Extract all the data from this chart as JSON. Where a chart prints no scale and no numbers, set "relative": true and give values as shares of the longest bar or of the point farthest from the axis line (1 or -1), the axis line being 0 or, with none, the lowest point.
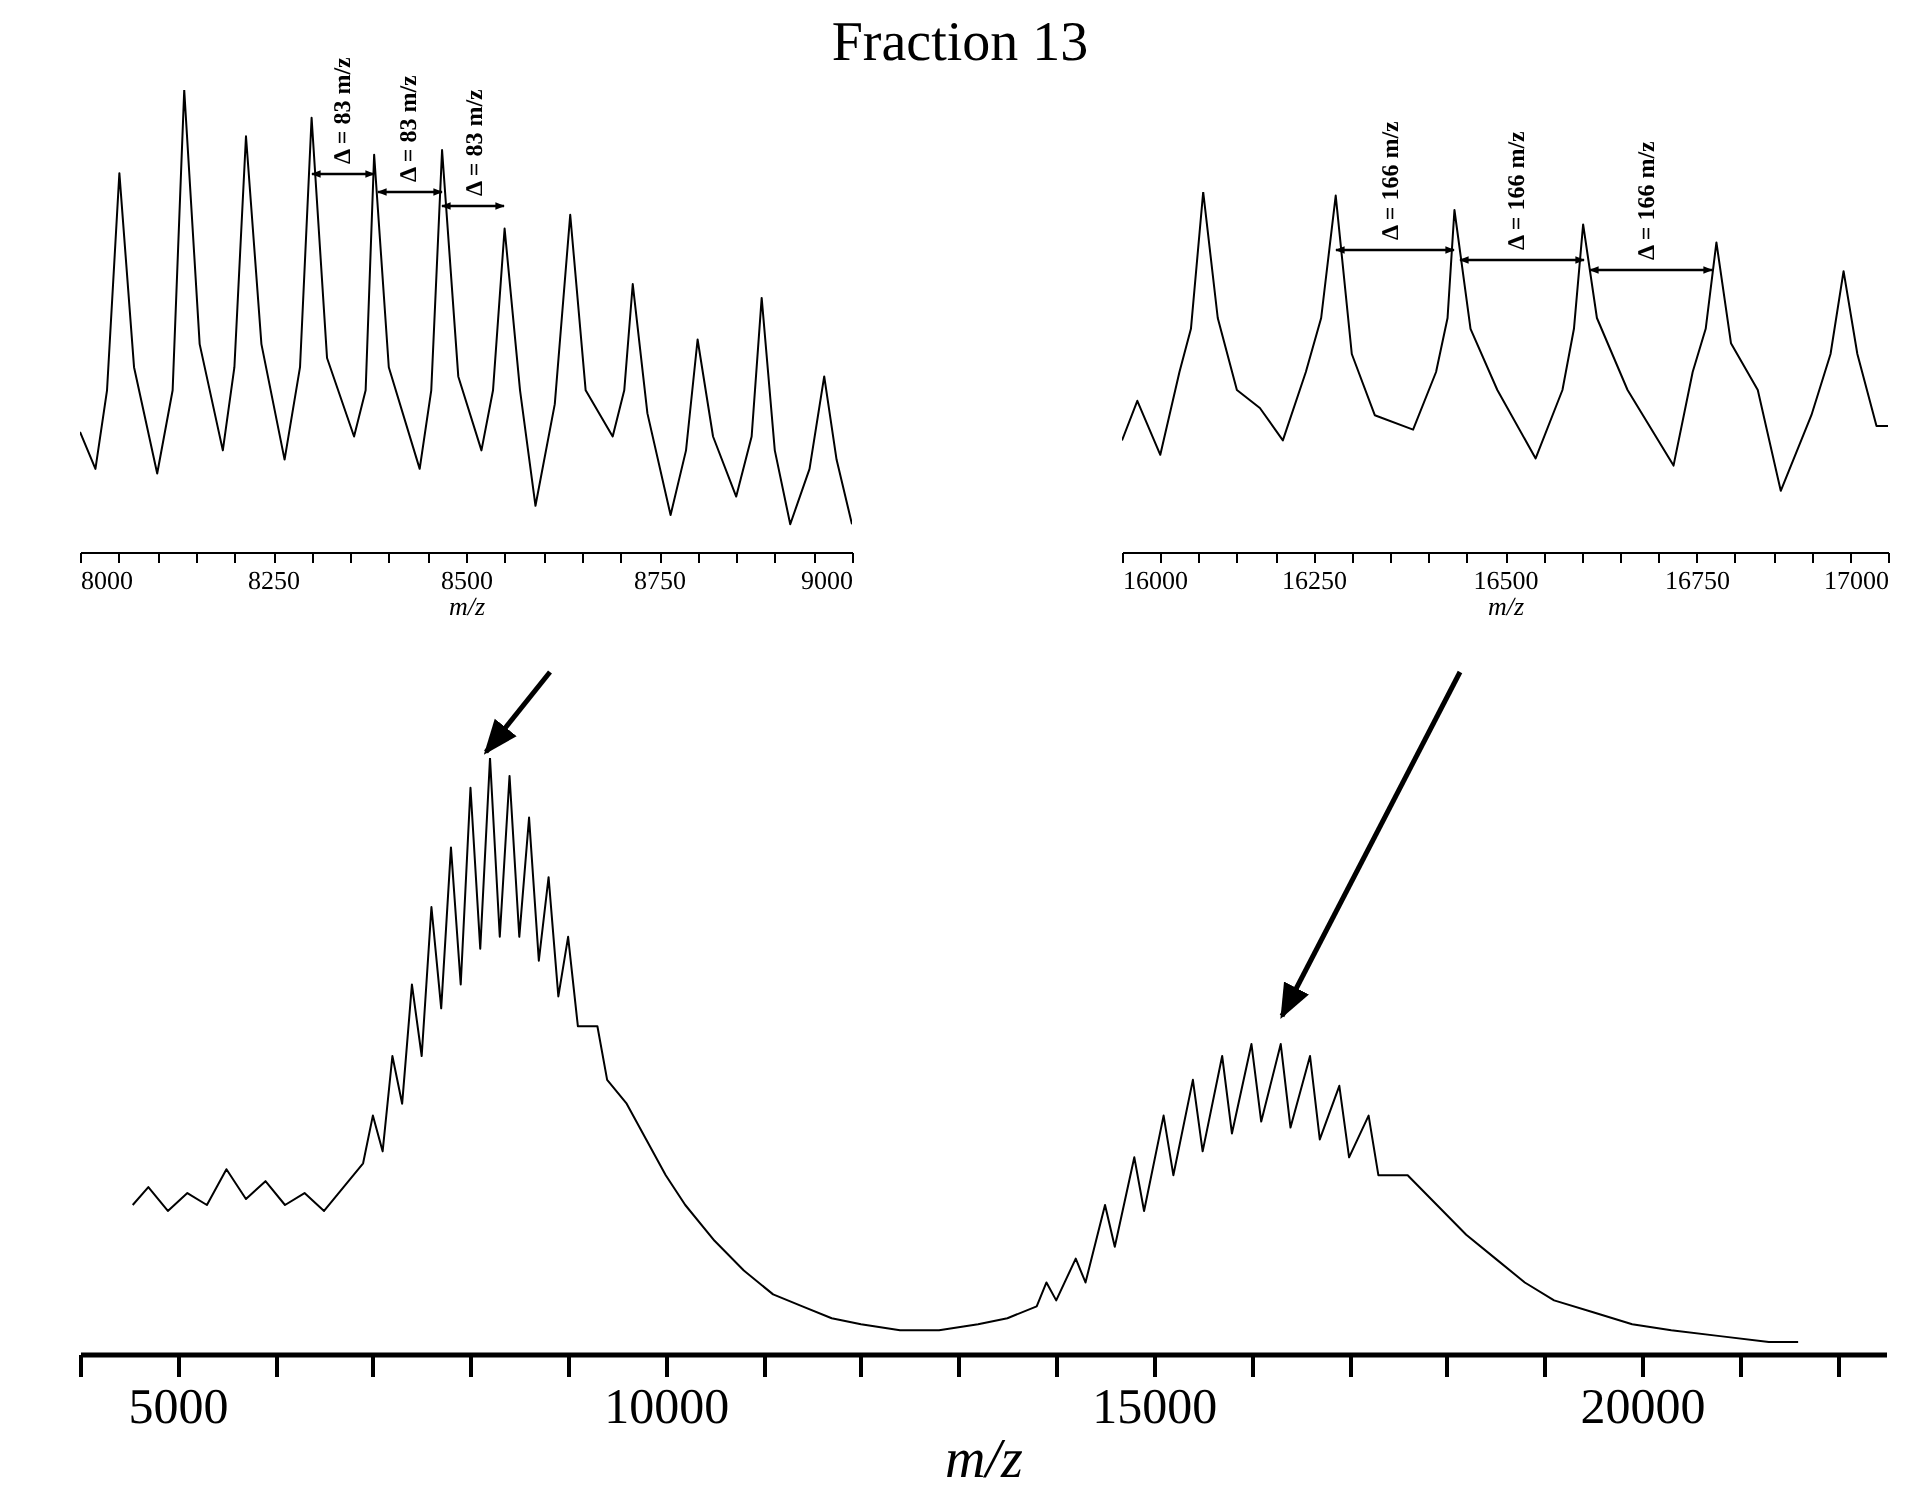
{
  "chart_data": [
    {
      "type": "line",
      "title": "Fraction 13",
      "xlabel": "m/z",
      "relative": true,
      "xlim": [
        8000,
        9000
      ],
      "xticks": [
        8000,
        {
          "value": 8050,
          "label": null
        },
        {
          "value": 8100,
          "label": null
        },
        {
          "value": 8150,
          "label": null
        },
        {
          "value": 8200,
          "label": null
        },
        8250,
        {
          "value": 8300,
          "label": null
        },
        {
          "value": 8350,
          "label": null
        },
        {
          "value": 8400,
          "label": null
        },
        {
          "value": 8450,
          "label": null
        },
        8500,
        {
          "value": 8550,
          "label": null
        },
        {
          "value": 8600,
          "label": null
        },
        {
          "value": 8650,
          "label": null
        },
        {
          "value": 8700,
          "label": null
        },
        8750,
        {
          "value": 8800,
          "label": null
        },
        {
          "value": 8850,
          "label": null
        },
        {
          "value": 8900,
          "label": null
        },
        {
          "value": 8950,
          "label": null
        },
        9000
      ],
      "x": [
        8000,
        8020,
        8035,
        8051,
        8070,
        8100,
        8120,
        8135,
        8155,
        8185,
        8200,
        8215,
        8235,
        8265,
        8285,
        8300,
        8320,
        8355,
        8370,
        8381,
        8400,
        8440,
        8455,
        8469,
        8490,
        8520,
        8535,
        8550,
        8570,
        8590,
        8615,
        8635,
        8655,
        8690,
        8705,
        8716,
        8735,
        8765,
        8785,
        8800,
        8820,
        8850,
        8870,
        8883,
        8900,
        8920,
        8945,
        8964,
        8980,
        9000
      ],
      "series": [
        {
          "color": "#000000",
          "values": [
            0.26,
            0.18,
            0.35,
            0.82,
            0.4,
            0.17,
            0.35,
            1.0,
            0.45,
            0.22,
            0.4,
            0.9,
            0.45,
            0.2,
            0.4,
            0.94,
            0.42,
            0.25,
            0.35,
            0.86,
            0.4,
            0.18,
            0.35,
            0.87,
            0.38,
            0.22,
            0.35,
            0.7,
            0.35,
            0.1,
            0.32,
            0.73,
            0.35,
            0.25,
            0.35,
            0.58,
            0.3,
            0.08,
            0.22,
            0.46,
            0.25,
            0.12,
            0.25,
            0.55,
            0.22,
            0.06,
            0.18,
            0.38,
            0.2,
            0.06
          ]
        }
      ],
      "annotations": [
        "Δ = 83 m/z",
        "Δ = 83 m/z",
        "Δ = 83 m/z"
      ]
    },
    {
      "type": "line",
      "xlabel": "m/z",
      "relative": true,
      "xlim": [
        16000,
        17000
      ],
      "xticks": [
        16000,
        {
          "value": 16050,
          "label": null
        },
        {
          "value": 16100,
          "label": null
        },
        {
          "value": 16150,
          "label": null
        },
        {
          "value": 16200,
          "label": null
        },
        16250,
        {
          "value": 16300,
          "label": null
        },
        {
          "value": 16350,
          "label": null
        },
        {
          "value": 16400,
          "label": null
        },
        {
          "value": 16450,
          "label": null
        },
        16500,
        {
          "value": 16550,
          "label": null
        },
        {
          "value": 16600,
          "label": null
        },
        {
          "value": 16650,
          "label": null
        },
        {
          "value": 16700,
          "label": null
        },
        16750,
        {
          "value": 16800,
          "label": null
        },
        {
          "value": 16850,
          "label": null
        },
        {
          "value": 16900,
          "label": null
        },
        {
          "value": 16950,
          "label": null
        },
        17000
      ],
      "x": [
        16000,
        16020,
        16050,
        16075,
        16090,
        16106,
        16125,
        16150,
        16180,
        16210,
        16240,
        16260,
        16279,
        16300,
        16330,
        16380,
        16410,
        16425,
        16434,
        16455,
        16490,
        16540,
        16575,
        16590,
        16602,
        16620,
        16660,
        16720,
        16745,
        16762,
        16776,
        16795,
        16830,
        16860,
        16900,
        16925,
        16942,
        16960,
        16985,
        17000
      ],
      "series": [
        {
          "color": "#000000",
          "values": [
            0.31,
            0.42,
            0.27,
            0.5,
            0.62,
            1.0,
            0.65,
            0.45,
            0.4,
            0.31,
            0.5,
            0.65,
            0.99,
            0.55,
            0.38,
            0.34,
            0.5,
            0.65,
            0.95,
            0.62,
            0.45,
            0.26,
            0.45,
            0.62,
            0.91,
            0.65,
            0.45,
            0.24,
            0.5,
            0.62,
            0.86,
            0.58,
            0.45,
            0.17,
            0.38,
            0.55,
            0.78,
            0.55,
            0.35,
            0.35
          ]
        }
      ],
      "annotations": [
        "Δ = 166 m/z",
        "Δ = 166 m/z",
        "Δ = 166 m/z"
      ]
    },
    {
      "type": "line",
      "xlabel": "m/z",
      "relative": true,
      "xlim": [
        4000,
        22500
      ],
      "xticks": [
        {
          "value": 4000,
          "label": null
        },
        5000,
        {
          "value": 6000,
          "label": null
        },
        {
          "value": 7000,
          "label": null
        },
        {
          "value": 8000,
          "label": null
        },
        {
          "value": 9000,
          "label": null
        },
        10000,
        {
          "value": 11000,
          "label": null
        },
        {
          "value": 12000,
          "label": null
        },
        {
          "value": 13000,
          "label": null
        },
        {
          "value": 14000,
          "label": null
        },
        15000,
        {
          "value": 16000,
          "label": null
        },
        {
          "value": 17000,
          "label": null
        },
        {
          "value": 18000,
          "label": null
        },
        {
          "value": 19000,
          "label": null
        },
        20000,
        {
          "value": 21000,
          "label": null
        },
        {
          "value": 22000,
          "label": null
        }
      ],
      "x": [
        4540,
        4700,
        4900,
        5100,
        5300,
        5500,
        5700,
        5900,
        6100,
        6300,
        6500,
        6700,
        6900,
        7000,
        7100,
        7200,
        7300,
        7400,
        7500,
        7600,
        7700,
        7800,
        7900,
        8000,
        8100,
        8200,
        8300,
        8400,
        8500,
        8600,
        8700,
        8800,
        8900,
        9000,
        9100,
        9300,
        9400,
        9600,
        9800,
        10000,
        10200,
        10500,
        10800,
        11100,
        11400,
        11700,
        12000,
        12400,
        12800,
        13200,
        13500,
        13800,
        13900,
        14000,
        14200,
        14300,
        14500,
        14600,
        14800,
        14900,
        15100,
        15200,
        15400,
        15500,
        15700,
        15800,
        16000,
        16100,
        16300,
        16400,
        16600,
        16700,
        16900,
        17000,
        17200,
        17300,
        17600,
        17900,
        18200,
        18500,
        18800,
        19100,
        19500,
        19900,
        20300,
        20800,
        21300,
        21600
      ],
      "series": [
        {
          "color": "#000000",
          "values": [
            0.25,
            0.28,
            0.24,
            0.27,
            0.25,
            0.31,
            0.26,
            0.29,
            0.25,
            0.27,
            0.24,
            0.28,
            0.32,
            0.4,
            0.34,
            0.5,
            0.42,
            0.62,
            0.5,
            0.75,
            0.58,
            0.85,
            0.62,
            0.95,
            0.68,
            1.0,
            0.7,
            0.97,
            0.7,
            0.9,
            0.66,
            0.8,
            0.6,
            0.7,
            0.55,
            0.55,
            0.46,
            0.42,
            0.36,
            0.3,
            0.25,
            0.19,
            0.14,
            0.1,
            0.08,
            0.06,
            0.05,
            0.04,
            0.04,
            0.05,
            0.06,
            0.08,
            0.12,
            0.09,
            0.16,
            0.12,
            0.25,
            0.18,
            0.33,
            0.24,
            0.4,
            0.3,
            0.46,
            0.34,
            0.5,
            0.37,
            0.52,
            0.39,
            0.52,
            0.38,
            0.5,
            0.36,
            0.45,
            0.33,
            0.4,
            0.3,
            0.3,
            0.25,
            0.2,
            0.16,
            0.12,
            0.09,
            0.07,
            0.05,
            0.04,
            0.03,
            0.02,
            0.02
          ]
        }
      ]
    }
  ]
}
